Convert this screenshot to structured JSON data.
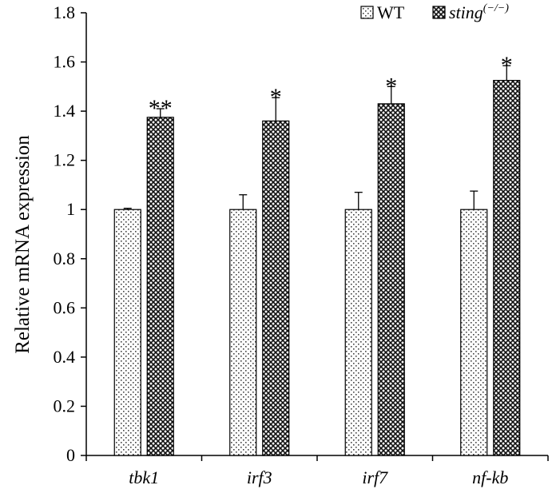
{
  "chart_data": {
    "type": "bar",
    "categories": [
      "tbk1",
      "irf3",
      "irf7",
      "nf-kb"
    ],
    "series": [
      {
        "name": "WT",
        "values": [
          1.0,
          1.0,
          1.0,
          1.0
        ],
        "errors": [
          0.005,
          0.06,
          0.07,
          0.075
        ],
        "significance": [
          "",
          "",
          "",
          ""
        ]
      },
      {
        "name": "sting(−/−)",
        "name_main": "sting",
        "name_sup": "(−/−)",
        "values": [
          1.375,
          1.36,
          1.43,
          1.525
        ],
        "errors": [
          0.035,
          0.095,
          0.07,
          0.06
        ],
        "significance": [
          "**",
          "*",
          "*",
          "*"
        ]
      }
    ],
    "ylabel": "Relative mRNA expression",
    "ylim": [
      0,
      1.8
    ],
    "yticks": [
      "0",
      "0.2",
      "0.4",
      "0.6",
      "0.8",
      "1",
      "1.2",
      "1.4",
      "1.6",
      "1.8"
    ],
    "grid": false,
    "legend_position": "top-right"
  }
}
